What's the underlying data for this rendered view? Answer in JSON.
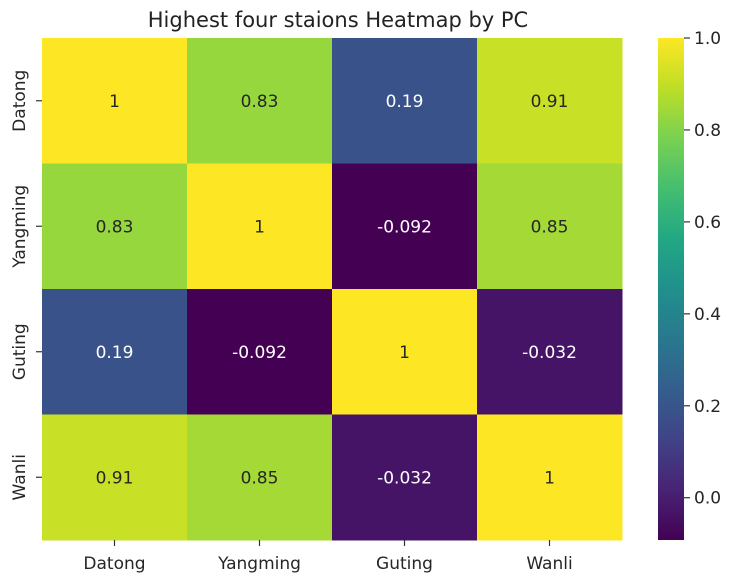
{
  "chart_data": {
    "type": "heatmap",
    "title": "Highest four staions Heatmap by PC",
    "x_categories": [
      "Datong",
      "Yangming",
      "Guting",
      "Wanli"
    ],
    "y_categories": [
      "Datong",
      "Yangming",
      "Guting",
      "Wanli"
    ],
    "values": [
      [
        1,
        0.83,
        0.19,
        0.91
      ],
      [
        0.83,
        1,
        -0.092,
        0.85
      ],
      [
        0.19,
        -0.092,
        1,
        -0.032
      ],
      [
        0.91,
        0.85,
        -0.032,
        1
      ]
    ],
    "cell_labels": [
      [
        "1",
        "0.83",
        "0.19",
        "0.91"
      ],
      [
        "0.83",
        "1",
        "-0.092",
        "0.85"
      ],
      [
        "0.19",
        "-0.092",
        "1",
        "-0.032"
      ],
      [
        "0.91",
        "0.85",
        "-0.032",
        "1"
      ]
    ],
    "colormap": "viridis",
    "vmin": -0.092,
    "vmax": 1,
    "colorbar_ticks": [
      0.0,
      0.2,
      0.4,
      0.6,
      0.8,
      1.0
    ],
    "colorbar_tick_labels": [
      "0.0",
      "0.2",
      "0.4",
      "0.6",
      "0.8",
      "1.0"
    ]
  }
}
